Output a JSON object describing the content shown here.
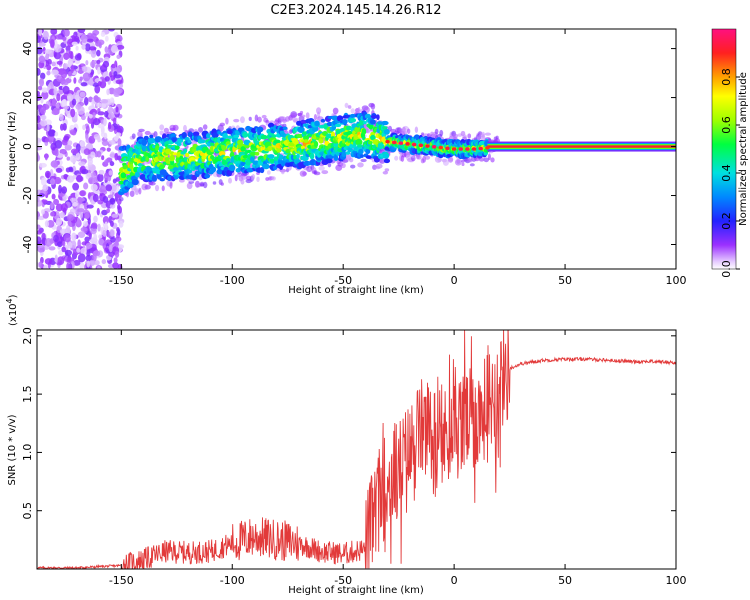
{
  "title": "C2E3.2024.145.14.26.R12",
  "chart_data": [
    {
      "type": "heatmap",
      "name": "spectrogram",
      "xlabel": "Height of straight line (km)",
      "ylabel": "Frequency (Hz)",
      "xlim": [
        -188,
        100
      ],
      "ylim": [
        -50,
        48
      ],
      "xticks": [
        -150,
        -100,
        -50,
        0,
        50,
        100
      ],
      "yticks": [
        -40,
        -20,
        0,
        20,
        40
      ],
      "colorbar": {
        "label": "Normalized spectral amplitude",
        "range": [
          0,
          1
        ],
        "ticks": [
          "0.0",
          "0.2",
          "0.4",
          "0.6",
          "0.8"
        ],
        "tick_values": [
          0,
          0.2,
          0.4,
          0.6,
          0.8
        ]
      },
      "ridge": {
        "description_points_x": [
          -150,
          -140,
          -120,
          -100,
          -80,
          -60,
          -50,
          -40,
          -30,
          -20,
          -10,
          0,
          10,
          20,
          50,
          100
        ],
        "center_frequency_hz": [
          -10,
          -5,
          -4,
          -2,
          0,
          2,
          4,
          5,
          2,
          1,
          0,
          -1,
          -1,
          0,
          0,
          0
        ]
      }
    },
    {
      "type": "line",
      "name": "snr",
      "xlabel": "Height of straight line (km)",
      "ylabel": "SNR (10 * v/v)",
      "exponent_label": "(x10",
      "exponent_power": "4",
      "exponent_close": ")",
      "xlim": [
        -188,
        100
      ],
      "ylim": [
        0,
        2.05
      ],
      "xticks": [
        -150,
        -100,
        -50,
        0,
        50,
        100
      ],
      "yticks": [
        0.5,
        1.0,
        1.5,
        2.0
      ],
      "ytick_labels": [
        "0.5",
        "1.0",
        "1.5",
        "2.0"
      ],
      "series": [
        {
          "name": "SNR",
          "color": "#e23a3a",
          "x": [
            -188,
            -170,
            -160,
            -150,
            -140,
            -130,
            -120,
            -110,
            -100,
            -90,
            -80,
            -70,
            -60,
            -50,
            -40,
            -35,
            -30,
            -25,
            -20,
            -15,
            -10,
            -5,
            0,
            5,
            10,
            15,
            20,
            25,
            30,
            40,
            50,
            60,
            70,
            80,
            90,
            100
          ],
          "y": [
            0.01,
            0.01,
            0.02,
            0.03,
            0.08,
            0.15,
            0.14,
            0.15,
            0.22,
            0.28,
            0.25,
            0.22,
            0.15,
            0.13,
            0.17,
            0.55,
            0.75,
            0.85,
            1.0,
            1.2,
            1.15,
            1.1,
            1.2,
            1.25,
            1.3,
            1.4,
            1.6,
            1.72,
            1.76,
            1.79,
            1.8,
            1.8,
            1.79,
            1.78,
            1.78,
            1.77
          ]
        }
      ]
    }
  ],
  "colors": {
    "line": "#e23a3a",
    "background": "#ffffff"
  }
}
